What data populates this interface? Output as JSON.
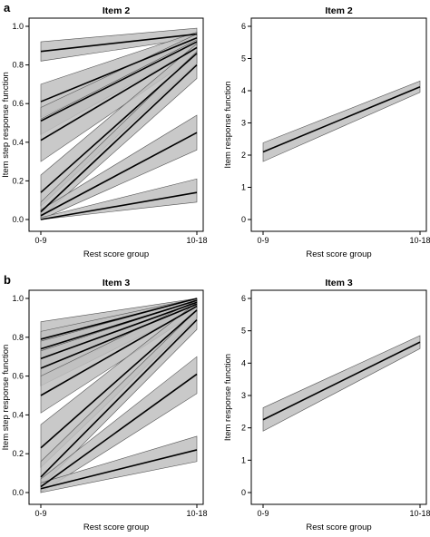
{
  "figure": {
    "panel_letters": [
      "a",
      "b"
    ]
  },
  "chart_data": [
    {
      "type": "line",
      "title": "Item 2",
      "xlabel": "Rest score group",
      "ylabel": "Item step response function",
      "x": [
        "0-9",
        "10-18"
      ],
      "ylim": [
        0,
        1
      ],
      "yticks": [
        "0.0",
        "0.2",
        "0.4",
        "0.6",
        "0.8",
        "1.0"
      ],
      "band_color": "#c0c0c0",
      "series": [
        {
          "values": [
            0.87,
            0.96
          ],
          "band_low": [
            0.82,
            0.94
          ],
          "band_high": [
            0.92,
            0.99
          ]
        },
        {
          "values": [
            0.61,
            0.94
          ],
          "band_low": [
            0.53,
            0.91
          ],
          "band_high": [
            0.7,
            0.97
          ]
        },
        {
          "values": [
            0.51,
            0.92
          ],
          "band_low": [
            0.44,
            0.89
          ],
          "band_high": [
            0.58,
            0.96
          ]
        },
        {
          "values": [
            0.41,
            0.89
          ],
          "band_low": [
            0.3,
            0.85
          ],
          "band_high": [
            0.52,
            0.93
          ]
        },
        {
          "values": [
            0.14,
            0.86
          ],
          "band_low": [
            0.07,
            0.81
          ],
          "band_high": [
            0.23,
            0.91
          ]
        },
        {
          "values": [
            0.04,
            0.8
          ],
          "band_low": [
            0.01,
            0.73
          ],
          "band_high": [
            0.09,
            0.87
          ]
        },
        {
          "values": [
            0.02,
            0.45
          ],
          "band_low": [
            0.0,
            0.36
          ],
          "band_high": [
            0.05,
            0.54
          ]
        },
        {
          "values": [
            0.0,
            0.14
          ],
          "band_low": [
            0.0,
            0.09
          ],
          "band_high": [
            0.01,
            0.21
          ]
        }
      ]
    },
    {
      "type": "line",
      "title": "Item 2",
      "xlabel": "Rest score group",
      "ylabel": "Item response function",
      "x": [
        "0-9",
        "10-18"
      ],
      "ylim": [
        0,
        6
      ],
      "yticks": [
        "0",
        "1",
        "2",
        "3",
        "4",
        "5",
        "6"
      ],
      "band_color": "#c0c0c0",
      "series": [
        {
          "values": [
            2.1,
            4.12
          ],
          "band_low": [
            1.8,
            3.95
          ],
          "band_high": [
            2.38,
            4.3
          ]
        }
      ]
    },
    {
      "type": "line",
      "title": "Item 3",
      "xlabel": "Rest score group",
      "ylabel": "Item step response function",
      "x": [
        "0-9",
        "10-18"
      ],
      "ylim": [
        0,
        1
      ],
      "yticks": [
        "0.0",
        "0.2",
        "0.4",
        "0.6",
        "0.8",
        "1.0"
      ],
      "band_color": "#c0c0c0",
      "series": [
        {
          "values": [
            0.79,
            1.0
          ],
          "band_low": [
            0.71,
            0.99
          ],
          "band_high": [
            0.88,
            1.0
          ]
        },
        {
          "values": [
            0.74,
            0.99
          ],
          "band_low": [
            0.66,
            0.98
          ],
          "band_high": [
            0.83,
            1.0
          ]
        },
        {
          "values": [
            0.69,
            0.98
          ],
          "band_low": [
            0.6,
            0.96
          ],
          "band_high": [
            0.78,
            1.0
          ]
        },
        {
          "values": [
            0.64,
            0.97
          ],
          "band_low": [
            0.55,
            0.95
          ],
          "band_high": [
            0.73,
            0.99
          ]
        },
        {
          "values": [
            0.5,
            0.96
          ],
          "band_low": [
            0.41,
            0.93
          ],
          "band_high": [
            0.6,
            0.99
          ]
        },
        {
          "values": [
            0.23,
            0.94
          ],
          "band_low": [
            0.13,
            0.9
          ],
          "band_high": [
            0.35,
            0.98
          ]
        },
        {
          "values": [
            0.08,
            0.89
          ],
          "band_low": [
            0.03,
            0.84
          ],
          "band_high": [
            0.16,
            0.94
          ]
        },
        {
          "values": [
            0.03,
            0.61
          ],
          "band_low": [
            0.0,
            0.51
          ],
          "band_high": [
            0.07,
            0.7
          ]
        },
        {
          "values": [
            0.02,
            0.22
          ],
          "band_low": [
            0.0,
            0.16
          ],
          "band_high": [
            0.05,
            0.29
          ]
        }
      ]
    },
    {
      "type": "line",
      "title": "Item 3",
      "xlabel": "Rest score group",
      "ylabel": "Item response function",
      "x": [
        "0-9",
        "10-18"
      ],
      "ylim": [
        0,
        6
      ],
      "yticks": [
        "0",
        "1",
        "2",
        "3",
        "4",
        "5",
        "6"
      ],
      "band_color": "#c0c0c0",
      "series": [
        {
          "values": [
            2.25,
            4.65
          ],
          "band_low": [
            1.9,
            4.45
          ],
          "band_high": [
            2.62,
            4.85
          ]
        }
      ]
    }
  ]
}
